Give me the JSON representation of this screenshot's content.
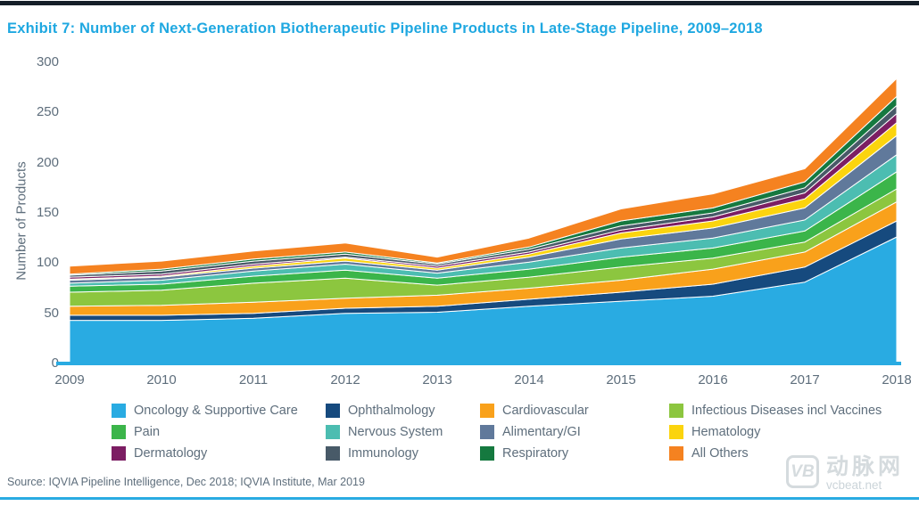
{
  "header": {
    "title": "Exhibit 7: Number of Next-Generation Biotherapeutic Pipeline Products in Late-Stage Pipeline, 2009–2018"
  },
  "chart_data": {
    "type": "area",
    "stacked": true,
    "title": "Exhibit 7: Number of Next-Generation Biotherapeutic Pipeline Products in Late-Stage Pipeline, 2009–2018",
    "xlabel": "",
    "ylabel": "Number of Products",
    "ylim": [
      0,
      300
    ],
    "yticks": [
      0,
      50,
      100,
      150,
      200,
      250,
      300
    ],
    "grid": false,
    "legend_position": "bottom",
    "categories": [
      "2009",
      "2010",
      "2011",
      "2012",
      "2013",
      "2014",
      "2015",
      "2016",
      "2017",
      "2018"
    ],
    "series": [
      {
        "name": "Oncology & Supportive Care",
        "color": "#29ABE2",
        "values": [
          43,
          43,
          45,
          50,
          51,
          57,
          62,
          67,
          81,
          126
        ]
      },
      {
        "name": "Ophthalmology",
        "color": "#164A7E",
        "values": [
          5,
          5,
          5,
          5,
          6,
          7,
          9,
          12,
          15,
          16
        ]
      },
      {
        "name": "Cardiovascular",
        "color": "#F9A11B",
        "values": [
          9,
          10,
          11,
          10,
          11,
          11,
          12,
          15,
          15,
          19
        ]
      },
      {
        "name": "Infectious Diseases incl Vaccines",
        "color": "#8CC63F",
        "values": [
          14,
          15,
          19,
          20,
          10,
          11,
          13,
          11,
          10,
          13
        ]
      },
      {
        "name": "Pain",
        "color": "#3BB54A",
        "values": [
          6,
          6,
          7,
          8,
          7,
          8,
          10,
          10,
          11,
          17
        ]
      },
      {
        "name": "Nervous System",
        "color": "#4CBDB1",
        "values": [
          3,
          4,
          5,
          6,
          5,
          7,
          9,
          10,
          11,
          17
        ]
      },
      {
        "name": "Alimentary/GI",
        "color": "#60799B",
        "values": [
          3,
          3,
          3,
          3,
          3,
          5,
          9,
          10,
          12,
          19
        ]
      },
      {
        "name": "Hematology",
        "color": "#FBD40E",
        "values": [
          1,
          1,
          2,
          3,
          2,
          3,
          6,
          7,
          9,
          13
        ]
      },
      {
        "name": "Dermatology",
        "color": "#7C1E63",
        "values": [
          2,
          2,
          2,
          1,
          2,
          2,
          3,
          4,
          6,
          9
        ]
      },
      {
        "name": "Immunology",
        "color": "#485A68",
        "values": [
          2,
          3,
          3,
          3,
          2,
          3,
          4,
          4,
          5,
          8
        ]
      },
      {
        "name": "Respiratory",
        "color": "#15793F",
        "values": [
          1,
          2,
          2,
          2,
          1,
          2,
          5,
          5,
          6,
          9
        ]
      },
      {
        "name": "All Others",
        "color": "#F58220",
        "values": [
          8,
          8,
          8,
          9,
          6,
          9,
          12,
          14,
          13,
          18
        ]
      }
    ]
  },
  "source": {
    "text": "Source: IQVIA Pipeline Intelligence, Dec 2018; IQVIA Institute, Mar 2019"
  },
  "watermark": {
    "logo_text": "VB",
    "brand_cn": "动脉网",
    "brand_url": "vcbeat.net"
  },
  "colors": {
    "accent_cyan": "#29ABE2",
    "title_text": "#1FA8E1",
    "top_rule": "#141E28",
    "axis_text": "#5E6E7C",
    "watermark_gray": "#D5DBDE"
  }
}
